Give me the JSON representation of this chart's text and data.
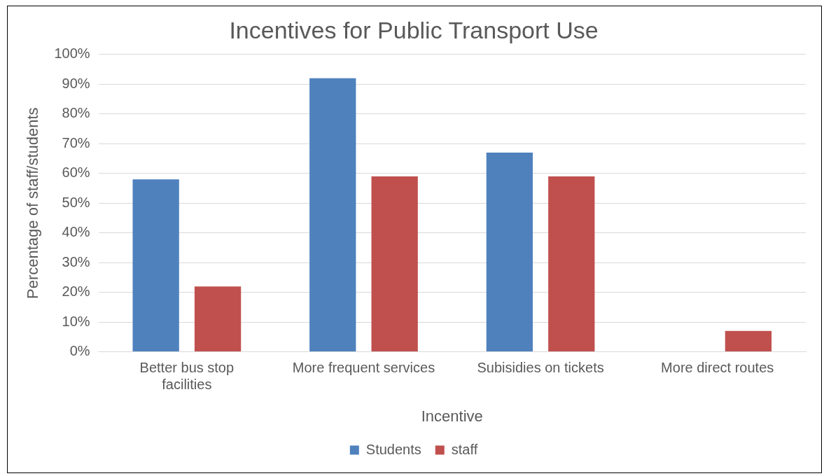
{
  "chart_data": {
    "type": "bar",
    "title": "Incentives for Public Transport Use",
    "xlabel": "Incentive",
    "ylabel": "Percentage of staff/students",
    "categories": [
      "Better bus stop facilities",
      "More frequent services",
      "Subisidies on tickets",
      "More direct routes"
    ],
    "series": [
      {
        "name": "Students",
        "color": "#4f81bd",
        "values": [
          58,
          92,
          67,
          0
        ]
      },
      {
        "name": "staff",
        "color": "#c0504d",
        "values": [
          22,
          59,
          59,
          7
        ]
      }
    ],
    "ylim": [
      0,
      100
    ],
    "yticks": [
      {
        "value": 0,
        "label": "0%"
      },
      {
        "value": 10,
        "label": "10%"
      },
      {
        "value": 20,
        "label": "20%"
      },
      {
        "value": 30,
        "label": "30%"
      },
      {
        "value": 40,
        "label": "40%"
      },
      {
        "value": 50,
        "label": "50%"
      },
      {
        "value": 60,
        "label": "60%"
      },
      {
        "value": 70,
        "label": "70%"
      },
      {
        "value": 80,
        "label": "80%"
      },
      {
        "value": 90,
        "label": "90%"
      },
      {
        "value": 100,
        "label": "100%"
      }
    ],
    "grid": "y",
    "legend": "bottom"
  }
}
